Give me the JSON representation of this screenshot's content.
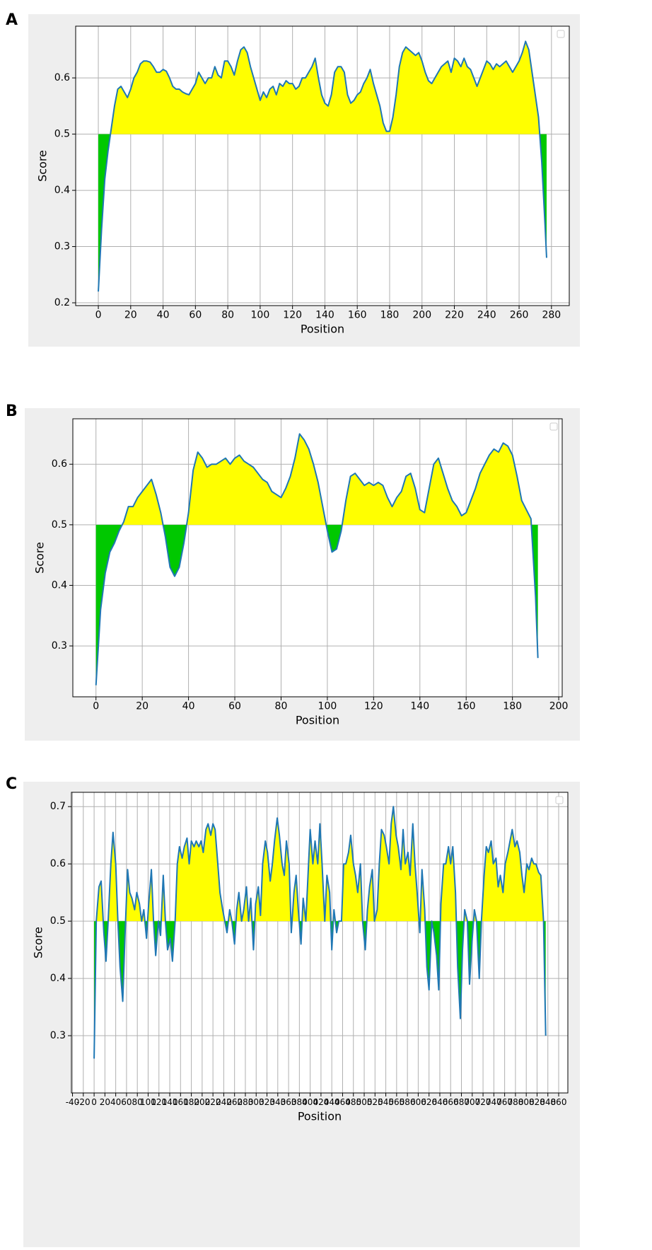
{
  "chart_data": [
    {
      "type": "line",
      "label": "A",
      "xlabel": "Position",
      "ylabel": "Score",
      "legend": "upper right",
      "grid": true,
      "fill_baseline": 0.5,
      "fill_above_color": "#ffff00",
      "fill_below_color": "#00c800",
      "xlim": [
        -14,
        291
      ],
      "ylim": [
        0.195,
        0.692
      ],
      "xticks": [
        0,
        20,
        40,
        60,
        80,
        100,
        120,
        140,
        160,
        180,
        200,
        220,
        240,
        260,
        280
      ],
      "yticks": [
        0.2,
        0.3,
        0.4,
        0.5,
        0.6
      ],
      "x": [
        0,
        2,
        4,
        6,
        8,
        10,
        12,
        14,
        16,
        18,
        20,
        22,
        24,
        26,
        28,
        30,
        32,
        34,
        36,
        38,
        40,
        42,
        44,
        46,
        48,
        50,
        52,
        54,
        56,
        58,
        60,
        62,
        64,
        66,
        68,
        70,
        72,
        74,
        76,
        78,
        80,
        82,
        84,
        86,
        88,
        90,
        92,
        94,
        96,
        98,
        100,
        102,
        104,
        106,
        108,
        110,
        112,
        114,
        116,
        118,
        120,
        122,
        124,
        126,
        128,
        130,
        132,
        134,
        136,
        138,
        140,
        142,
        144,
        146,
        148,
        150,
        152,
        154,
        156,
        158,
        160,
        162,
        164,
        166,
        168,
        170,
        172,
        174,
        176,
        178,
        180,
        182,
        184,
        186,
        188,
        190,
        192,
        194,
        196,
        198,
        200,
        202,
        204,
        206,
        208,
        210,
        212,
        214,
        216,
        218,
        220,
        222,
        224,
        226,
        228,
        230,
        232,
        234,
        236,
        238,
        240,
        242,
        244,
        246,
        248,
        250,
        252,
        254,
        256,
        258,
        260,
        262,
        264,
        266,
        268,
        270,
        272,
        274,
        276,
        277
      ],
      "series": [
        {
          "color": "#1f77b4",
          "values": [
            0.22,
            0.33,
            0.42,
            0.47,
            0.51,
            0.55,
            0.58,
            0.585,
            0.575,
            0.565,
            0.58,
            0.6,
            0.61,
            0.625,
            0.63,
            0.63,
            0.628,
            0.62,
            0.61,
            0.61,
            0.615,
            0.612,
            0.6,
            0.585,
            0.58,
            0.58,
            0.575,
            0.572,
            0.57,
            0.58,
            0.59,
            0.61,
            0.6,
            0.59,
            0.6,
            0.6,
            0.62,
            0.605,
            0.6,
            0.63,
            0.63,
            0.62,
            0.605,
            0.63,
            0.65,
            0.655,
            0.645,
            0.62,
            0.6,
            0.58,
            0.56,
            0.575,
            0.565,
            0.58,
            0.585,
            0.57,
            0.59,
            0.585,
            0.595,
            0.59,
            0.59,
            0.58,
            0.585,
            0.6,
            0.6,
            0.61,
            0.62,
            0.635,
            0.6,
            0.57,
            0.555,
            0.55,
            0.57,
            0.61,
            0.62,
            0.62,
            0.61,
            0.57,
            0.555,
            0.56,
            0.57,
            0.575,
            0.59,
            0.6,
            0.615,
            0.59,
            0.57,
            0.55,
            0.52,
            0.505,
            0.505,
            0.53,
            0.57,
            0.62,
            0.645,
            0.655,
            0.65,
            0.645,
            0.64,
            0.645,
            0.63,
            0.61,
            0.595,
            0.59,
            0.6,
            0.61,
            0.62,
            0.625,
            0.63,
            0.61,
            0.635,
            0.63,
            0.62,
            0.635,
            0.62,
            0.615,
            0.6,
            0.585,
            0.6,
            0.615,
            0.63,
            0.625,
            0.615,
            0.625,
            0.62,
            0.625,
            0.63,
            0.62,
            0.61,
            0.62,
            0.63,
            0.645,
            0.665,
            0.65,
            0.61,
            0.57,
            0.53,
            0.45,
            0.34,
            0.28
          ]
        }
      ]
    },
    {
      "type": "line",
      "label": "B",
      "xlabel": "Position",
      "ylabel": "Score",
      "legend": "upper right",
      "grid": true,
      "fill_baseline": 0.5,
      "fill_above_color": "#ffff00",
      "fill_below_color": "#00c800",
      "xlim": [
        -10,
        201.5
      ],
      "ylim": [
        0.216,
        0.675
      ],
      "xticks": [
        0,
        20,
        40,
        60,
        80,
        100,
        120,
        140,
        160,
        180,
        200
      ],
      "yticks": [
        0.3,
        0.4,
        0.5,
        0.6
      ],
      "x": [
        0,
        2,
        4,
        6,
        8,
        10,
        12,
        14,
        16,
        18,
        20,
        22,
        24,
        26,
        28,
        30,
        32,
        34,
        36,
        38,
        40,
        42,
        44,
        46,
        48,
        50,
        52,
        54,
        56,
        58,
        60,
        62,
        64,
        66,
        68,
        70,
        72,
        74,
        76,
        78,
        80,
        82,
        84,
        86,
        88,
        90,
        92,
        94,
        96,
        98,
        100,
        102,
        104,
        106,
        108,
        110,
        112,
        114,
        116,
        118,
        120,
        122,
        124,
        126,
        128,
        130,
        132,
        134,
        136,
        138,
        140,
        142,
        144,
        146,
        148,
        150,
        152,
        154,
        156,
        158,
        160,
        162,
        164,
        166,
        168,
        170,
        172,
        174,
        176,
        178,
        180,
        182,
        184,
        186,
        188,
        190,
        191
      ],
      "series": [
        {
          "color": "#1f77b4",
          "values": [
            0.235,
            0.36,
            0.42,
            0.455,
            0.47,
            0.49,
            0.505,
            0.53,
            0.53,
            0.545,
            0.555,
            0.565,
            0.575,
            0.55,
            0.52,
            0.48,
            0.43,
            0.415,
            0.43,
            0.47,
            0.52,
            0.59,
            0.62,
            0.61,
            0.595,
            0.6,
            0.6,
            0.605,
            0.61,
            0.6,
            0.61,
            0.615,
            0.605,
            0.6,
            0.595,
            0.585,
            0.575,
            0.57,
            0.555,
            0.55,
            0.545,
            0.56,
            0.58,
            0.61,
            0.65,
            0.64,
            0.625,
            0.6,
            0.57,
            0.53,
            0.49,
            0.455,
            0.46,
            0.49,
            0.54,
            0.58,
            0.585,
            0.575,
            0.565,
            0.57,
            0.565,
            0.57,
            0.565,
            0.545,
            0.53,
            0.545,
            0.555,
            0.58,
            0.585,
            0.56,
            0.525,
            0.52,
            0.56,
            0.6,
            0.61,
            0.585,
            0.56,
            0.54,
            0.53,
            0.515,
            0.52,
            0.54,
            0.56,
            0.585,
            0.6,
            0.615,
            0.625,
            0.62,
            0.635,
            0.63,
            0.615,
            0.58,
            0.54,
            0.525,
            0.51,
            0.38,
            0.28
          ]
        }
      ]
    },
    {
      "type": "line",
      "label": "C",
      "xlabel": "Position",
      "ylabel": "Score",
      "legend": "upper right",
      "grid": true,
      "fill_baseline": 0.5,
      "fill_above_color": "#ffff00",
      "fill_below_color": "#00c800",
      "xlim": [
        -42,
        877
      ],
      "ylim": [
        0.2,
        0.725
      ],
      "xticks": [
        -40,
        -20,
        0,
        20,
        40,
        60,
        80,
        100,
        120,
        140,
        160,
        180,
        200,
        220,
        240,
        260,
        280,
        300,
        320,
        340,
        360,
        380,
        400,
        420,
        440,
        460,
        480,
        500,
        520,
        540,
        560,
        580,
        600,
        620,
        640,
        660,
        680,
        700,
        720,
        740,
        760,
        780,
        800,
        820,
        840,
        860
      ],
      "yticks": [
        0.3,
        0.4,
        0.5,
        0.6,
        0.7
      ],
      "x": [
        0,
        4,
        9,
        13,
        18,
        22,
        26,
        31,
        35,
        40,
        44,
        48,
        53,
        57,
        62,
        66,
        70,
        75,
        79,
        84,
        88,
        92,
        97,
        101,
        106,
        110,
        114,
        119,
        123,
        128,
        132,
        136,
        141,
        145,
        150,
        154,
        158,
        163,
        167,
        172,
        176,
        180,
        185,
        189,
        194,
        198,
        202,
        207,
        211,
        216,
        220,
        224,
        229,
        233,
        238,
        242,
        246,
        251,
        255,
        260,
        264,
        268,
        273,
        277,
        282,
        286,
        290,
        295,
        299,
        304,
        308,
        312,
        317,
        321,
        326,
        330,
        334,
        339,
        343,
        348,
        352,
        356,
        361,
        365,
        370,
        374,
        378,
        383,
        387,
        392,
        396,
        400,
        405,
        409,
        414,
        418,
        422,
        427,
        431,
        436,
        440,
        444,
        449,
        453,
        458,
        462,
        466,
        471,
        475,
        480,
        484,
        488,
        493,
        497,
        502,
        506,
        510,
        515,
        519,
        524,
        528,
        532,
        537,
        541,
        546,
        550,
        554,
        559,
        563,
        568,
        572,
        576,
        581,
        585,
        590,
        594,
        598,
        603,
        607,
        612,
        616,
        620,
        625,
        629,
        634,
        638,
        642,
        647,
        651,
        656,
        660,
        664,
        669,
        673,
        678,
        682,
        686,
        691,
        695,
        700,
        704,
        708,
        713,
        717,
        722,
        726,
        730,
        735,
        739,
        744,
        748,
        752,
        757,
        761,
        766,
        770,
        774,
        779,
        783,
        788,
        792,
        796,
        801,
        805,
        810,
        814,
        818,
        823,
        827,
        832,
        836
      ],
      "series": [
        {
          "color": "#1f77b4",
          "values": [
            0.26,
            0.5,
            0.56,
            0.57,
            0.48,
            0.43,
            0.5,
            0.6,
            0.655,
            0.6,
            0.5,
            0.42,
            0.36,
            0.47,
            0.59,
            0.55,
            0.54,
            0.52,
            0.55,
            0.53,
            0.5,
            0.52,
            0.47,
            0.53,
            0.59,
            0.5,
            0.44,
            0.5,
            0.475,
            0.58,
            0.5,
            0.45,
            0.47,
            0.43,
            0.5,
            0.6,
            0.63,
            0.61,
            0.63,
            0.645,
            0.6,
            0.64,
            0.63,
            0.64,
            0.63,
            0.64,
            0.62,
            0.66,
            0.67,
            0.65,
            0.67,
            0.66,
            0.6,
            0.55,
            0.52,
            0.5,
            0.48,
            0.52,
            0.5,
            0.46,
            0.52,
            0.55,
            0.5,
            0.52,
            0.56,
            0.5,
            0.54,
            0.45,
            0.53,
            0.56,
            0.51,
            0.6,
            0.64,
            0.62,
            0.57,
            0.6,
            0.64,
            0.68,
            0.65,
            0.6,
            0.58,
            0.64,
            0.6,
            0.48,
            0.55,
            0.58,
            0.52,
            0.46,
            0.54,
            0.5,
            0.58,
            0.66,
            0.6,
            0.64,
            0.6,
            0.67,
            0.6,
            0.5,
            0.58,
            0.55,
            0.45,
            0.52,
            0.48,
            0.5,
            0.5,
            0.6,
            0.6,
            0.62,
            0.65,
            0.6,
            0.58,
            0.55,
            0.6,
            0.5,
            0.45,
            0.52,
            0.56,
            0.59,
            0.5,
            0.52,
            0.6,
            0.66,
            0.65,
            0.63,
            0.6,
            0.67,
            0.7,
            0.65,
            0.63,
            0.59,
            0.66,
            0.6,
            0.62,
            0.58,
            0.67,
            0.6,
            0.55,
            0.48,
            0.59,
            0.52,
            0.42,
            0.38,
            0.5,
            0.48,
            0.44,
            0.38,
            0.53,
            0.6,
            0.6,
            0.63,
            0.6,
            0.63,
            0.55,
            0.42,
            0.33,
            0.45,
            0.52,
            0.5,
            0.39,
            0.47,
            0.52,
            0.5,
            0.4,
            0.5,
            0.58,
            0.63,
            0.62,
            0.64,
            0.6,
            0.61,
            0.56,
            0.58,
            0.55,
            0.6,
            0.62,
            0.64,
            0.66,
            0.63,
            0.64,
            0.62,
            0.58,
            0.55,
            0.6,
            0.59,
            0.61,
            0.6,
            0.6,
            0.585,
            0.58,
            0.5,
            0.3
          ]
        }
      ]
    }
  ]
}
